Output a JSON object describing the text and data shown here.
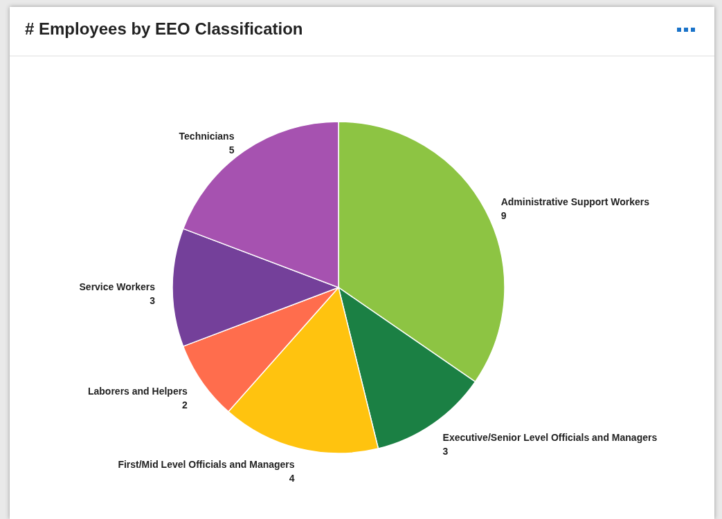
{
  "chart_data": {
    "type": "pie",
    "title": "# Employees by EEO Classification",
    "categories": [
      "Administrative Support Workers",
      "Executive/Senior Level Officials and Managers",
      "First/Mid Level Officials and Managers",
      "Laborers and Helpers",
      "Service Workers",
      "Technicians"
    ],
    "values": [
      9,
      3,
      4,
      2,
      3,
      5
    ],
    "colors": [
      "#8dc443",
      "#1b8044",
      "#ffc30f",
      "#ff6d4d",
      "#74409a",
      "#a652b0"
    ],
    "data_labels": true,
    "legend": false
  }
}
